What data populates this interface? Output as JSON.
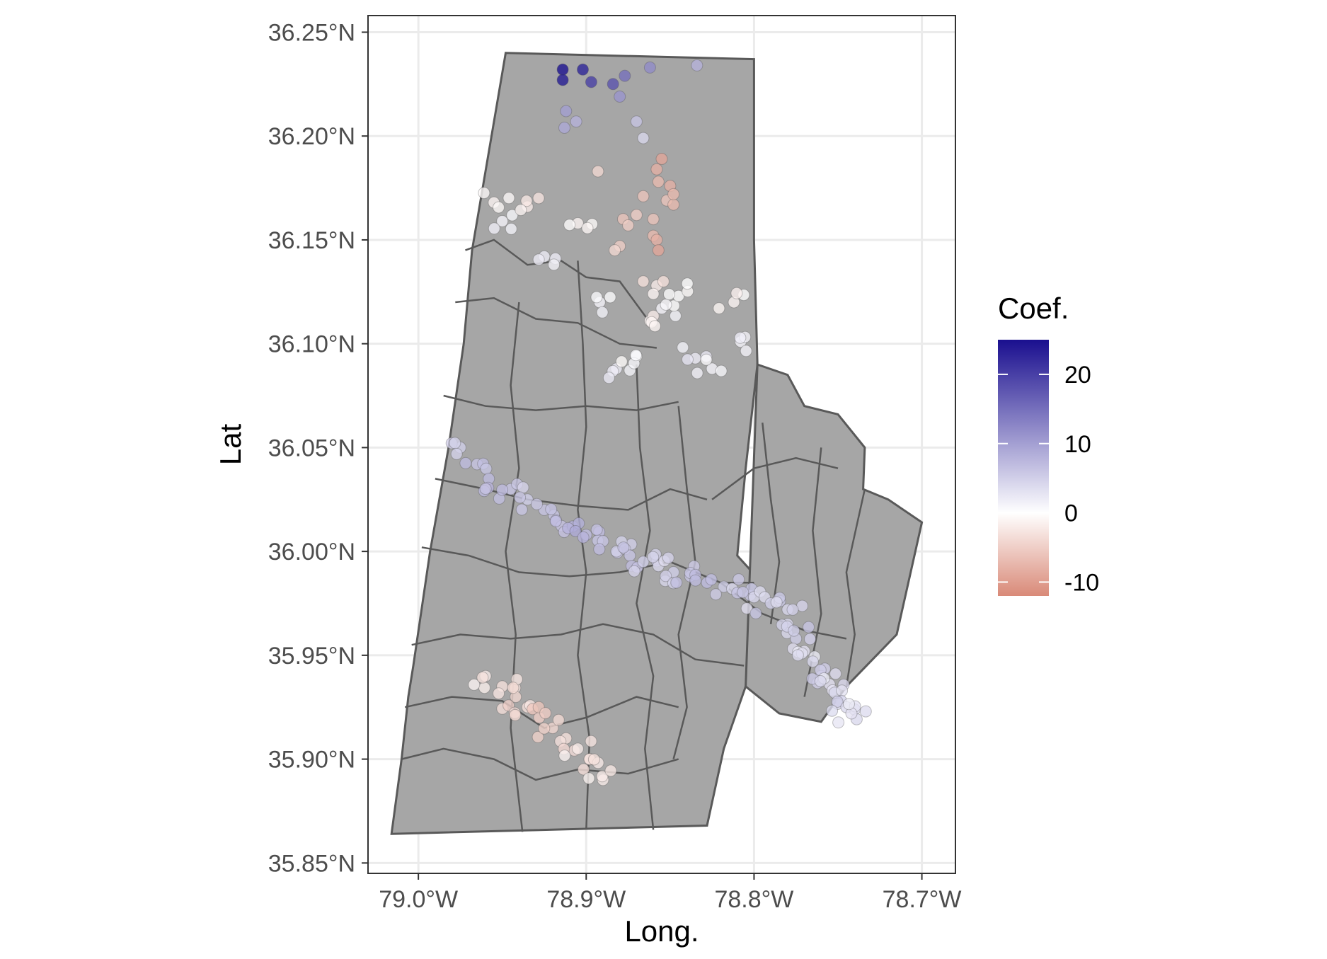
{
  "chart_data": {
    "type": "scatter",
    "map_type": "choropleth-style point map over county/tract polygons",
    "xlabel": "Long.",
    "ylabel": "Lat",
    "xlim": [
      -79.03,
      -78.68
    ],
    "ylim": [
      35.845,
      36.258
    ],
    "x_ticks": [
      {
        "value": -79.0,
        "label": "79.0°W"
      },
      {
        "value": -78.9,
        "label": "78.9°W"
      },
      {
        "value": -78.8,
        "label": "78.8°W"
      },
      {
        "value": -78.7,
        "label": "78.7°W"
      }
    ],
    "y_ticks": [
      {
        "value": 35.85,
        "label": "35.85°N"
      },
      {
        "value": 35.9,
        "label": "35.90°N"
      },
      {
        "value": 35.95,
        "label": "35.95°N"
      },
      {
        "value": 36.0,
        "label": "36.00°N"
      },
      {
        "value": 36.05,
        "label": "36.05°N"
      },
      {
        "value": 36.1,
        "label": "36.10°N"
      },
      {
        "value": 36.15,
        "label": "36.15°N"
      },
      {
        "value": 36.2,
        "label": "36.20°N"
      },
      {
        "value": 36.25,
        "label": "36.25°N"
      }
    ],
    "grid": true,
    "legend": {
      "title": "Coef.",
      "placement": "right",
      "type": "continuous-gradient",
      "range": [
        -12,
        25
      ],
      "stops": [
        {
          "value": -12,
          "color": "#d98a78"
        },
        {
          "value": 0,
          "color": "#ffffff"
        },
        {
          "value": 25,
          "color": "#1a0f8f"
        }
      ],
      "breaks": [
        {
          "value": 20,
          "label": "20"
        },
        {
          "value": 10,
          "label": "10"
        },
        {
          "value": 0,
          "label": "0"
        },
        {
          "value": -10,
          "label": "-10"
        }
      ]
    },
    "colors": {
      "background": "#ffffff",
      "panel_border": "#333333",
      "grid": "#ebebeb",
      "county_fill": "#a6a6a6",
      "county_border": "#595959"
    },
    "boundary": [
      [
        -79.016,
        35.864
      ],
      [
        -78.828,
        35.868
      ],
      [
        -78.818,
        35.905
      ],
      [
        -78.805,
        35.935
      ],
      [
        -78.79,
        35.95
      ],
      [
        -78.792,
        35.982
      ],
      [
        -78.81,
        35.998
      ],
      [
        -78.805,
        36.04
      ],
      [
        -78.798,
        36.09
      ],
      [
        -78.8,
        36.15
      ],
      [
        -78.8,
        36.237
      ],
      [
        -78.948,
        36.24
      ],
      [
        -78.968,
        36.145
      ],
      [
        -78.973,
        36.1
      ],
      [
        -78.982,
        36.05
      ],
      [
        -78.993,
        36.0
      ],
      [
        -79.003,
        35.945
      ],
      [
        -79.006,
        35.93
      ],
      [
        -79.01,
        35.9
      ]
    ],
    "eastern_boundary": [
      [
        -78.798,
        36.09
      ],
      [
        -78.78,
        36.085
      ],
      [
        -78.77,
        36.07
      ],
      [
        -78.75,
        36.066
      ],
      [
        -78.734,
        36.05
      ],
      [
        -78.735,
        36.03
      ],
      [
        -78.72,
        36.025
      ],
      [
        -78.7,
        36.014
      ],
      [
        -78.715,
        35.96
      ],
      [
        -78.745,
        35.935
      ],
      [
        -78.76,
        35.918
      ],
      [
        -78.785,
        35.922
      ],
      [
        -78.805,
        35.935
      ]
    ],
    "internal_boundaries": [
      [
        [
          -78.972,
          36.145
        ],
        [
          -78.955,
          36.15
        ],
        [
          -78.935,
          36.138
        ],
        [
          -78.915,
          36.14
        ],
        [
          -78.9,
          36.132
        ],
        [
          -78.88,
          36.13
        ],
        [
          -78.86,
          36.108
        ]
      ],
      [
        [
          -78.978,
          36.12
        ],
        [
          -78.955,
          36.122
        ],
        [
          -78.93,
          36.112
        ],
        [
          -78.905,
          36.11
        ],
        [
          -78.88,
          36.1
        ],
        [
          -78.858,
          36.098
        ]
      ],
      [
        [
          -78.985,
          36.075
        ],
        [
          -78.96,
          36.07
        ],
        [
          -78.93,
          36.068
        ],
        [
          -78.9,
          36.07
        ],
        [
          -78.87,
          36.068
        ],
        [
          -78.845,
          36.072
        ]
      ],
      [
        [
          -78.99,
          36.035
        ],
        [
          -78.96,
          36.03
        ],
        [
          -78.935,
          36.025
        ],
        [
          -78.905,
          36.022
        ],
        [
          -78.875,
          36.02
        ],
        [
          -78.85,
          36.03
        ],
        [
          -78.828,
          36.025
        ]
      ],
      [
        [
          -78.998,
          36.002
        ],
        [
          -78.97,
          35.998
        ],
        [
          -78.94,
          35.99
        ],
        [
          -78.91,
          35.988
        ],
        [
          -78.88,
          35.99
        ],
        [
          -78.85,
          35.995
        ],
        [
          -78.82,
          35.985
        ],
        [
          -78.8,
          35.985
        ]
      ],
      [
        [
          -79.004,
          35.955
        ],
        [
          -78.975,
          35.96
        ],
        [
          -78.945,
          35.958
        ],
        [
          -78.915,
          35.96
        ],
        [
          -78.89,
          35.965
        ],
        [
          -78.86,
          35.96
        ],
        [
          -78.835,
          35.948
        ],
        [
          -78.806,
          35.945
        ]
      ],
      [
        [
          -79.008,
          35.925
        ],
        [
          -78.98,
          35.93
        ],
        [
          -78.95,
          35.928
        ],
        [
          -78.925,
          35.915
        ],
        [
          -78.9,
          35.92
        ],
        [
          -78.87,
          35.93
        ],
        [
          -78.845,
          35.925
        ]
      ],
      [
        [
          -79.01,
          35.9
        ],
        [
          -78.985,
          35.905
        ],
        [
          -78.955,
          35.9
        ],
        [
          -78.93,
          35.89
        ],
        [
          -78.905,
          35.895
        ],
        [
          -78.875,
          35.893
        ],
        [
          -78.845,
          35.9
        ]
      ],
      [
        [
          -78.905,
          36.14
        ],
        [
          -78.902,
          36.1
        ],
        [
          -78.9,
          36.06
        ],
        [
          -78.905,
          36.02
        ],
        [
          -78.9,
          35.99
        ],
        [
          -78.905,
          35.95
        ],
        [
          -78.898,
          35.91
        ],
        [
          -78.9,
          35.866
        ]
      ],
      [
        [
          -78.94,
          36.12
        ],
        [
          -78.945,
          36.08
        ],
        [
          -78.94,
          36.04
        ],
        [
          -78.948,
          36.0
        ],
        [
          -78.942,
          35.96
        ],
        [
          -78.945,
          35.915
        ],
        [
          -78.938,
          35.865
        ]
      ],
      [
        [
          -78.87,
          36.09
        ],
        [
          -78.868,
          36.05
        ],
        [
          -78.862,
          36.01
        ],
        [
          -78.87,
          35.975
        ],
        [
          -78.86,
          35.94
        ],
        [
          -78.865,
          35.905
        ],
        [
          -78.86,
          35.866
        ]
      ],
      [
        [
          -78.845,
          36.07
        ],
        [
          -78.84,
          36.03
        ],
        [
          -78.835,
          35.995
        ],
        [
          -78.845,
          35.96
        ],
        [
          -78.84,
          35.925
        ],
        [
          -78.848,
          35.9
        ]
      ],
      [
        [
          -78.795,
          36.062
        ],
        [
          -78.79,
          36.025
        ],
        [
          -78.785,
          35.995
        ],
        [
          -78.79,
          35.965
        ]
      ],
      [
        [
          -78.76,
          36.05
        ],
        [
          -78.765,
          36.01
        ],
        [
          -78.76,
          35.97
        ],
        [
          -78.77,
          35.93
        ]
      ],
      [
        [
          -78.734,
          36.03
        ],
        [
          -78.745,
          35.99
        ],
        [
          -78.74,
          35.96
        ],
        [
          -78.745,
          35.935
        ]
      ],
      [
        [
          -78.825,
          36.025
        ],
        [
          -78.8,
          36.04
        ],
        [
          -78.775,
          36.045
        ],
        [
          -78.75,
          36.04
        ]
      ],
      [
        [
          -78.82,
          35.985
        ],
        [
          -78.795,
          35.97
        ],
        [
          -78.77,
          35.962
        ],
        [
          -78.745,
          35.958
        ]
      ]
    ],
    "series": [
      {
        "x": [
          -78.914,
          -78.914,
          -78.902,
          -78.897,
          -78.884,
          -78.877,
          -78.862,
          -78.834,
          -78.912,
          -78.906,
          -78.913,
          -78.87,
          -78.88,
          -78.866
        ],
        "y": [
          36.232,
          36.227,
          36.232,
          36.226,
          36.225,
          36.229,
          36.233,
          36.234,
          36.212,
          36.207,
          36.204,
          36.207,
          36.219,
          36.199
        ],
        "coef": [
          25,
          24,
          23,
          20,
          18,
          15,
          12,
          8,
          10,
          8,
          9,
          6,
          11,
          4
        ]
      },
      {
        "x": [
          -78.855,
          -78.858,
          -78.857,
          -78.85,
          -78.852,
          -78.848,
          -78.86,
          -78.87,
          -78.878,
          -78.875,
          -78.86,
          -78.858,
          -78.857,
          -78.893,
          -78.88,
          -78.883,
          -78.866,
          -78.858,
          -78.854,
          -78.86,
          -78.848,
          -78.866
        ],
        "y": [
          36.189,
          36.184,
          36.178,
          36.176,
          36.169,
          36.167,
          36.16,
          36.162,
          36.16,
          36.157,
          36.152,
          36.15,
          36.145,
          36.183,
          36.147,
          36.145,
          36.13,
          36.128,
          36.13,
          36.124,
          36.172,
          36.171
        ],
        "coef": [
          -9,
          -8,
          -7,
          -8,
          -6,
          -7,
          -6,
          -5,
          -6,
          -5,
          -7,
          -8,
          -9,
          -4,
          -5,
          -4,
          -3,
          -2,
          -3,
          -1,
          -7,
          -6
        ]
      },
      {
        "x": [
          -78.955,
          -78.95,
          -78.935,
          -78.925,
          -78.905,
          -78.892,
          -78.882,
          -78.87,
          -78.862,
          -78.855,
          -78.845,
          -78.835,
          -78.825,
          -78.812,
          -78.808
        ],
        "y": [
          36.168,
          36.159,
          36.166,
          36.142,
          36.158,
          36.12,
          36.088,
          36.094,
          36.111,
          36.117,
          36.123,
          36.093,
          36.088,
          36.12,
          36.101
        ],
        "coef": [
          -1,
          1,
          -2,
          2,
          -1,
          1,
          2,
          0,
          -1,
          1,
          0,
          2,
          1,
          -1,
          1
        ],
        "jitter_cloud": "north-central urban cluster, near-white"
      },
      {
        "x": [
          -78.975,
          -78.965,
          -78.958,
          -78.945,
          -78.935,
          -78.925,
          -78.918,
          -78.908,
          -78.9,
          -78.89,
          -78.882,
          -78.874,
          -78.866,
          -78.857,
          -78.848,
          -78.838,
          -78.828,
          -78.818,
          -78.81,
          -78.8,
          -78.79,
          -78.78
        ],
        "y": [
          36.05,
          36.042,
          36.035,
          36.03,
          36.025,
          36.02,
          36.015,
          36.012,
          36.008,
          36.005,
          36.0,
          35.998,
          35.995,
          35.993,
          35.99,
          35.988,
          35.985,
          35.983,
          35.98,
          35.978,
          35.975,
          35.972
        ],
        "coef": [
          5,
          6,
          7,
          6,
          5,
          6,
          7,
          8,
          7,
          6,
          5,
          6,
          5,
          4,
          5,
          6,
          7,
          5,
          6,
          4,
          5,
          4
        ],
        "jitter_cloud": "central urban cluster, light lavender"
      },
      {
        "x": [
          -78.96,
          -78.95,
          -78.942,
          -78.935,
          -78.928,
          -78.92,
          -78.912,
          -78.905,
          -78.898,
          -78.89
        ],
        "y": [
          35.94,
          35.935,
          35.93,
          35.925,
          35.92,
          35.915,
          35.91,
          35.905,
          35.9,
          35.89
        ],
        "coef": [
          -2,
          -3,
          -4,
          -3,
          -5,
          -4,
          -3,
          -2,
          -3,
          -2
        ],
        "jitter_cloud": "southwest cluster, light salmon"
      },
      {
        "x": [
          -78.78,
          -78.775,
          -78.77,
          -78.765,
          -78.76,
          -78.755,
          -78.752,
          -78.748,
          -78.745,
          -78.742
        ],
        "y": [
          35.965,
          35.958,
          35.952,
          35.947,
          35.94,
          35.936,
          35.932,
          35.928,
          35.925,
          35.922
        ],
        "coef": [
          4,
          5,
          3,
          4,
          5,
          3,
          4,
          5,
          4,
          3
        ],
        "jitter_cloud": "eastern cluster, light lavender"
      }
    ]
  }
}
